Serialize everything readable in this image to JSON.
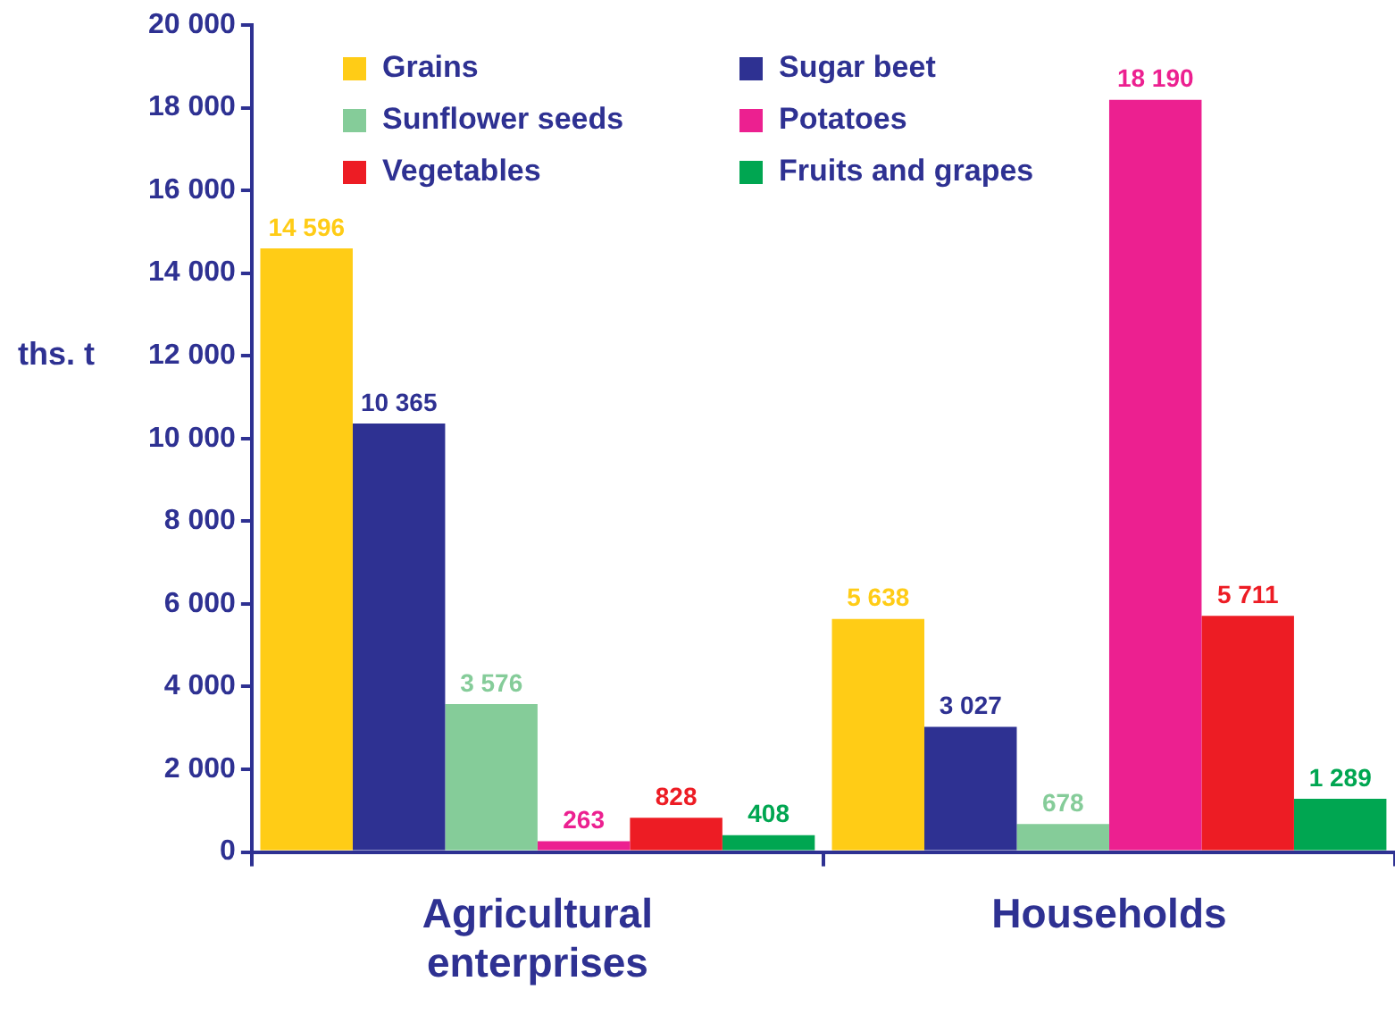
{
  "chart_data": {
    "type": "bar",
    "ylabel": "ths. t",
    "categories": [
      "Agricultural enterprises",
      "Households"
    ],
    "series": [
      {
        "name": "Grains",
        "color": "#ffcc16",
        "values": [
          14596,
          5638
        ],
        "value_labels": [
          "14 596",
          "5 638"
        ]
      },
      {
        "name": "Sugar beet",
        "color": "#2e3192",
        "values": [
          10365,
          3027
        ],
        "value_labels": [
          "10 365",
          "3 027"
        ]
      },
      {
        "name": "Sunflower seeds",
        "color": "#85cc99",
        "values": [
          3576,
          678
        ],
        "value_labels": [
          "3 576",
          "678"
        ]
      },
      {
        "name": "Potatoes",
        "color": "#ec2090",
        "values": [
          263,
          18190
        ],
        "value_labels": [
          "263",
          "18 190"
        ]
      },
      {
        "name": "Vegetables",
        "color": "#ed1c24",
        "values": [
          828,
          5711
        ],
        "value_labels": [
          "828",
          "5 711"
        ]
      },
      {
        "name": "Fruits and grapes",
        "color": "#00a651",
        "values": [
          408,
          1289
        ],
        "value_labels": [
          "408",
          "1 289"
        ]
      }
    ],
    "ylim": [
      0,
      20000
    ],
    "yticks": [
      {
        "value": 0,
        "label": "0"
      },
      {
        "value": 2000,
        "label": "2 000"
      },
      {
        "value": 4000,
        "label": "4 000"
      },
      {
        "value": 6000,
        "label": "6 000"
      },
      {
        "value": 8000,
        "label": "8 000"
      },
      {
        "value": 10000,
        "label": "10 000"
      },
      {
        "value": 12000,
        "label": "12 000"
      },
      {
        "value": 14000,
        "label": "14 000"
      },
      {
        "value": 16000,
        "label": "16 000"
      },
      {
        "value": 18000,
        "label": "18 000"
      },
      {
        "value": 20000,
        "label": "20 000"
      }
    ],
    "grid": false,
    "legend": "top"
  }
}
